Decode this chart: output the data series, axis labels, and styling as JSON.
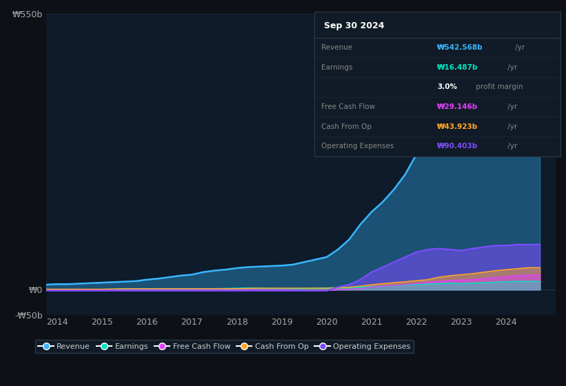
{
  "bg_color": "#0d1117",
  "chart_bg": "#0d1b2a",
  "grid_color": "#1e2d3d",
  "years": [
    2013.75,
    2014.0,
    2014.25,
    2014.5,
    2014.75,
    2015.0,
    2015.25,
    2015.5,
    2015.75,
    2016.0,
    2016.25,
    2016.5,
    2016.75,
    2017.0,
    2017.25,
    2017.5,
    2017.75,
    2018.0,
    2018.25,
    2018.5,
    2018.75,
    2019.0,
    2019.25,
    2019.5,
    2019.75,
    2020.0,
    2020.25,
    2020.5,
    2020.75,
    2021.0,
    2021.25,
    2021.5,
    2021.75,
    2022.0,
    2022.25,
    2022.5,
    2022.75,
    2023.0,
    2023.25,
    2023.5,
    2023.75,
    2024.0,
    2024.25,
    2024.5,
    2024.75
  ],
  "revenue": [
    10,
    11,
    11,
    12,
    13,
    14,
    15,
    16,
    17,
    20,
    22,
    25,
    28,
    30,
    35,
    38,
    40,
    43,
    45,
    46,
    47,
    48,
    50,
    55,
    60,
    65,
    80,
    100,
    130,
    155,
    175,
    200,
    230,
    270,
    300,
    340,
    380,
    400,
    420,
    450,
    480,
    510,
    530,
    542,
    543
  ],
  "earnings": [
    0.5,
    0.5,
    0.5,
    0.5,
    0.6,
    0.7,
    0.8,
    0.9,
    1.0,
    1.0,
    1.0,
    1.0,
    1.0,
    1.0,
    1.5,
    2.0,
    2.5,
    3.0,
    3.5,
    3.0,
    2.5,
    2.0,
    2.0,
    2.5,
    3.0,
    3.5,
    4.0,
    4.5,
    5.0,
    6.0,
    7.0,
    8.0,
    9.0,
    10.0,
    11.0,
    12.0,
    13.0,
    12.0,
    13.0,
    14.0,
    15.0,
    16.0,
    16.5,
    16.5,
    16.5
  ],
  "free_cash_flow": [
    -1,
    -1,
    -1,
    -1,
    -0.5,
    -0.5,
    -0.5,
    -0.5,
    0,
    0,
    0,
    0,
    0,
    0,
    0,
    0,
    0,
    0,
    0,
    0,
    0,
    0,
    -0.5,
    -1,
    -1,
    -1,
    0,
    1,
    2,
    5,
    7,
    8,
    10,
    12,
    15,
    16,
    18,
    19,
    20,
    22,
    24,
    26,
    28,
    29,
    29
  ],
  "cash_from_op": [
    1,
    1,
    1,
    1,
    1,
    1,
    1.5,
    2,
    2,
    2,
    2,
    2,
    2,
    2,
    2,
    2,
    2,
    2,
    2.5,
    3,
    3,
    3,
    3,
    3,
    3,
    3,
    4,
    5,
    7,
    10,
    12,
    14,
    16,
    18,
    20,
    25,
    28,
    30,
    32,
    35,
    38,
    40,
    42,
    44,
    44
  ],
  "operating_expenses": [
    -2,
    -2,
    -2,
    -2,
    -2,
    -2,
    -2,
    -2,
    -2,
    -2,
    -2,
    -2,
    -2,
    -2,
    -2,
    -2,
    -2,
    -2,
    -2,
    -2,
    -2,
    -2,
    -2,
    -2,
    -2,
    -2,
    5,
    10,
    20,
    35,
    45,
    55,
    65,
    75,
    80,
    82,
    80,
    78,
    82,
    85,
    88,
    88,
    90,
    90,
    90
  ],
  "revenue_color": "#38b6ff",
  "earnings_color": "#00e5c0",
  "fcf_color": "#e040fb",
  "cash_color": "#ffa726",
  "opex_color": "#7c4dff",
  "ylim": [
    -50,
    550
  ],
  "legend_items": [
    "Revenue",
    "Earnings",
    "Free Cash Flow",
    "Cash From Op",
    "Operating Expenses"
  ],
  "legend_colors": [
    "#38b6ff",
    "#00e5c0",
    "#e040fb",
    "#ffa726",
    "#7c4dff"
  ],
  "info_box": {
    "title": "Sep 30 2024",
    "title_color": "#ffffff",
    "bg_color": "#111b27",
    "border_color": "#2a3a4a",
    "rows": [
      {
        "label": "Revenue",
        "label_color": "#888888",
        "value": "₩542.568b",
        "value_color": "#38b6ff",
        "suffix": " /yr",
        "suffix_color": "#888888"
      },
      {
        "label": "Earnings",
        "label_color": "#888888",
        "value": "₩16.487b",
        "value_color": "#00e5c0",
        "suffix": " /yr",
        "suffix_color": "#888888"
      },
      {
        "label": "",
        "label_color": "#888888",
        "value": "3.0%",
        "value_color": "#ffffff",
        "suffix": " profit margin",
        "suffix_color": "#888888"
      },
      {
        "label": "Free Cash Flow",
        "label_color": "#888888",
        "value": "₩29.146b",
        "value_color": "#e040fb",
        "suffix": " /yr",
        "suffix_color": "#888888"
      },
      {
        "label": "Cash From Op",
        "label_color": "#888888",
        "value": "₩43.923b",
        "value_color": "#ffa726",
        "suffix": " /yr",
        "suffix_color": "#888888"
      },
      {
        "label": "Operating Expenses",
        "label_color": "#888888",
        "value": "₩90.403b",
        "value_color": "#7c4dff",
        "suffix": " /yr",
        "suffix_color": "#888888"
      }
    ]
  }
}
